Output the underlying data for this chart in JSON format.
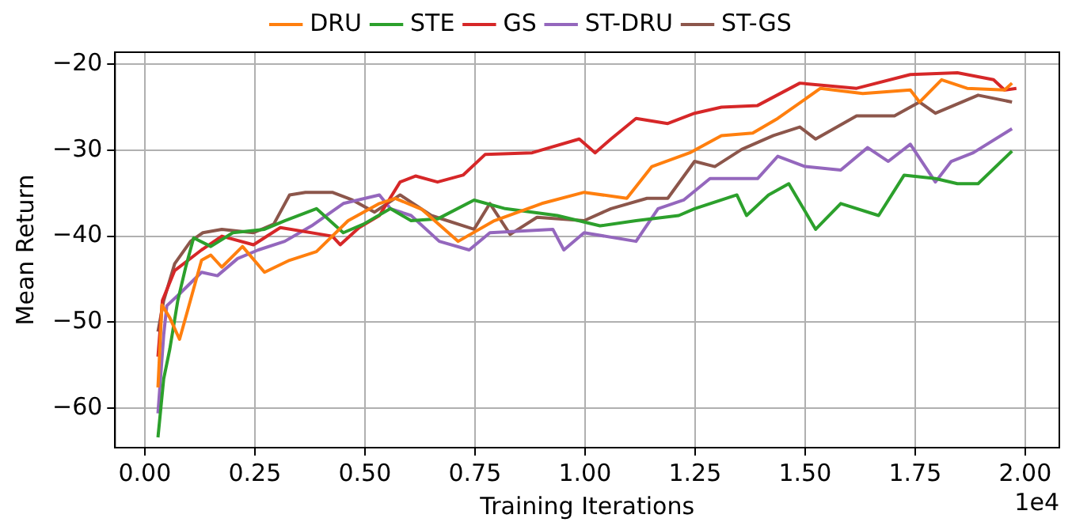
{
  "chart_data": {
    "type": "line",
    "xlabel": "Training Iterations",
    "ylabel": "Mean Return",
    "annotations": [
      "1e4"
    ],
    "xlim": [
      -0.0675,
      2.0775
    ],
    "ylim": [
      -64.6,
      -18.6
    ],
    "xticks": [
      {
        "value": 0,
        "label": "0.00"
      },
      {
        "value": 0.25,
        "label": "0.25"
      },
      {
        "value": 0.5,
        "label": "0.50"
      },
      {
        "value": 0.75,
        "label": "0.75"
      },
      {
        "value": 1,
        "label": "1.00"
      },
      {
        "value": 1.25,
        "label": "1.25"
      },
      {
        "value": 1.5,
        "label": "1.50"
      },
      {
        "value": 1.75,
        "label": "1.75"
      },
      {
        "value": 2,
        "label": "2.00"
      }
    ],
    "yticks": [
      {
        "value": -60,
        "label": "−60"
      },
      {
        "value": -50,
        "label": "−50"
      },
      {
        "value": -40,
        "label": "−40"
      },
      {
        "value": -30,
        "label": "−30"
      },
      {
        "value": -20,
        "label": "−20"
      }
    ],
    "grid": true,
    "legend": "top",
    "marker": "none",
    "line_style": "solid",
    "series": [
      {
        "name": "DRU",
        "color": "#ff7f0e",
        "x": [
          0.03,
          0.039,
          0.057,
          0.079,
          0.097,
          0.129,
          0.15,
          0.175,
          0.222,
          0.272,
          0.329,
          0.39,
          0.462,
          0.533,
          0.569,
          0.63,
          0.712,
          0.794,
          0.902,
          0.998,
          1.095,
          1.152,
          1.238,
          1.31,
          1.381,
          1.438,
          1.535,
          1.631,
          1.739,
          1.76,
          1.81,
          1.868,
          1.953,
          1.97
        ],
        "values": [
          -57.6,
          -48,
          -49.5,
          -52,
          -48.7,
          -42.8,
          -42.2,
          -43.6,
          -41.2,
          -44.2,
          -42.8,
          -41.8,
          -38.2,
          -36.2,
          -35.6,
          -36.9,
          -40.6,
          -38.2,
          -36.2,
          -34.9,
          -35.6,
          -31.9,
          -30.3,
          -28.3,
          -28,
          -26.3,
          -22.8,
          -23.4,
          -23,
          -24.4,
          -21.8,
          -22.8,
          -23,
          -22.2
        ]
      },
      {
        "name": "STE",
        "color": "#2ca02c",
        "x": [
          0.03,
          0.043,
          0.057,
          0.075,
          0.093,
          0.111,
          0.15,
          0.2,
          0.272,
          0.318,
          0.39,
          0.451,
          0.497,
          0.558,
          0.605,
          0.665,
          0.748,
          0.819,
          0.937,
          1.034,
          1.116,
          1.213,
          1.249,
          1.345,
          1.367,
          1.417,
          1.463,
          1.524,
          1.581,
          1.667,
          1.725,
          1.796,
          1.846,
          1.893,
          1.97
        ],
        "values": [
          -63.4,
          -56.6,
          -53.1,
          -47.5,
          -43.6,
          -40.2,
          -41.2,
          -39.6,
          -39.2,
          -38.2,
          -36.8,
          -39.6,
          -38.6,
          -36.8,
          -38.2,
          -38,
          -35.8,
          -36.8,
          -37.6,
          -38.8,
          -38.2,
          -37.6,
          -36.8,
          -35.2,
          -37.6,
          -35.2,
          -33.9,
          -39.2,
          -36.2,
          -37.6,
          -32.9,
          -33.3,
          -33.9,
          -33.9,
          -30.1
        ]
      },
      {
        "name": "GS",
        "color": "#d62728",
        "x": [
          0.03,
          0.04,
          0.068,
          0.129,
          0.175,
          0.247,
          0.308,
          0.426,
          0.444,
          0.487,
          0.533,
          0.58,
          0.615,
          0.665,
          0.723,
          0.773,
          0.88,
          0.987,
          1.023,
          1.059,
          1.116,
          1.188,
          1.249,
          1.31,
          1.392,
          1.488,
          1.617,
          1.739,
          1.846,
          1.928,
          1.953,
          1.98
        ],
        "values": [
          -54,
          -47.5,
          -44,
          -41.6,
          -40,
          -41,
          -39,
          -40,
          -41,
          -39,
          -37.6,
          -33.7,
          -33,
          -33.7,
          -32.9,
          -30.5,
          -30.3,
          -28.7,
          -30.3,
          -28.7,
          -26.3,
          -26.9,
          -25.7,
          -25,
          -24.8,
          -22.2,
          -22.8,
          -21.2,
          -21,
          -21.8,
          -23,
          -22.8
        ]
      },
      {
        "name": "ST-DRU",
        "color": "#9467bd",
        "x": [
          0.03,
          0.043,
          0.05,
          0.079,
          0.129,
          0.165,
          0.211,
          0.258,
          0.318,
          0.379,
          0.451,
          0.533,
          0.558,
          0.605,
          0.669,
          0.737,
          0.784,
          0.927,
          0.952,
          0.998,
          1.116,
          1.166,
          1.224,
          1.284,
          1.392,
          1.438,
          1.5,
          1.581,
          1.642,
          1.689,
          1.739,
          1.796,
          1.832,
          1.882,
          1.97
        ],
        "values": [
          -60.6,
          -51.5,
          -48.1,
          -46.7,
          -44.2,
          -44.6,
          -42.6,
          -41.6,
          -40.6,
          -38.8,
          -36.2,
          -35.2,
          -36.8,
          -37.6,
          -40.6,
          -41.6,
          -39.6,
          -39.2,
          -41.6,
          -39.6,
          -40.6,
          -36.8,
          -35.8,
          -33.3,
          -33.3,
          -30.7,
          -31.9,
          -32.3,
          -29.7,
          -31.3,
          -29.3,
          -33.7,
          -31.3,
          -30.3,
          -27.5
        ]
      },
      {
        "name": "ST-GS",
        "color": "#8c564b",
        "x": [
          0.03,
          0.043,
          0.068,
          0.104,
          0.132,
          0.175,
          0.247,
          0.293,
          0.329,
          0.365,
          0.426,
          0.472,
          0.522,
          0.58,
          0.651,
          0.748,
          0.784,
          0.83,
          0.891,
          0.998,
          1.059,
          1.141,
          1.188,
          1.249,
          1.295,
          1.356,
          1.428,
          1.488,
          1.524,
          1.617,
          1.703,
          1.76,
          1.796,
          1.893,
          1.97
        ],
        "values": [
          -51.1,
          -47.5,
          -43.2,
          -40.6,
          -39.6,
          -39.2,
          -39.6,
          -38.6,
          -35.2,
          -34.9,
          -34.9,
          -35.8,
          -37.2,
          -35.2,
          -37.6,
          -39.2,
          -36.2,
          -39.8,
          -37.8,
          -38.2,
          -36.8,
          -35.6,
          -35.6,
          -31.3,
          -31.9,
          -29.9,
          -28.3,
          -27.3,
          -28.7,
          -26,
          -26,
          -24.4,
          -25.7,
          -23.6,
          -24.4
        ]
      }
    ]
  }
}
